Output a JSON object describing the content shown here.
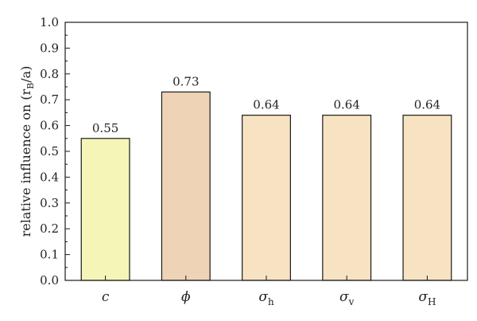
{
  "chart_data": {
    "type": "bar",
    "categories": [
      {
        "symbol": "c",
        "subscript": ""
      },
      {
        "symbol": "ϕ",
        "subscript": ""
      },
      {
        "symbol": "σ",
        "subscript": "h"
      },
      {
        "symbol": "σ",
        "subscript": "v"
      },
      {
        "symbol": "σ",
        "subscript": "H"
      }
    ],
    "values": [
      0.55,
      0.73,
      0.64,
      0.64,
      0.64
    ],
    "value_labels": [
      "0.55",
      "0.73",
      "0.64",
      "0.64",
      "0.64"
    ],
    "bar_colors": [
      "#f5f5b8",
      "#efd3b7",
      "#f7e3c2",
      "#f7e3c2",
      "#f7e3c2"
    ],
    "bar_edge_color": "#1a1a1a",
    "ylabel": {
      "text": "relative influence on (r",
      "sub": "B",
      "tail": "/a)"
    },
    "ylim": [
      0,
      1.0
    ],
    "yticks": [
      "0.0",
      "0.1",
      "0.2",
      "0.3",
      "0.4",
      "0.5",
      "0.6",
      "0.7",
      "0.8",
      "0.9",
      "1.0"
    ],
    "grid": false,
    "legend": "none"
  }
}
